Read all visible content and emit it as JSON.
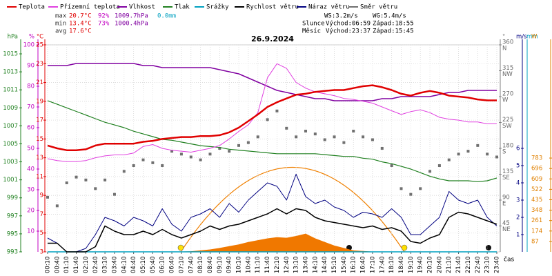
{
  "header": {
    "legend_title": null,
    "stats": [
      {
        "label": "max",
        "items": [
          "20.7°C",
          "92%",
          "1009.7hPa",
          "0.0mm"
        ]
      },
      {
        "label": "min",
        "items": [
          "13.4°C",
          "73%",
          "1000.4hPa"
        ]
      },
      {
        "label": "avg",
        "items": [
          "17.6°C"
        ]
      }
    ],
    "wind": [
      "WS:3.2m/s",
      "WG:5.4m/s"
    ],
    "sun": [
      "Slunce",
      "Východ:06:59",
      "Západ:18:55"
    ],
    "moon": [
      "Měsíc",
      "Východ:23:37",
      "Západ:15:45"
    ]
  },
  "chart_data": {
    "type": "line",
    "title": "26.9.2024",
    "x_label": "čas",
    "grid": true,
    "categories": [
      "00:10",
      "00:40",
      "01:10",
      "01:40",
      "02:10",
      "02:40",
      "03:10",
      "03:40",
      "04:10",
      "04:40",
      "05:10",
      "05:40",
      "06:10",
      "06:40",
      "07:10",
      "07:40",
      "08:10",
      "08:40",
      "09:10",
      "09:40",
      "10:10",
      "10:40",
      "11:10",
      "11:40",
      "12:10",
      "12:40",
      "13:10",
      "13:40",
      "14:10",
      "14:40",
      "15:10",
      "15:40",
      "16:10",
      "16:40",
      "17:10",
      "17:40",
      "18:10",
      "18:40",
      "19:10",
      "19:40",
      "20:10",
      "20:40",
      "21:10",
      "21:40",
      "22:10",
      "22:40",
      "23:10",
      "23:40"
    ],
    "axes": [
      {
        "label": "hPa",
        "side": "left",
        "color": "#208020",
        "lim": [
          993,
          1016
        ],
        "ticks": [
          993,
          995,
          997,
          999,
          1001,
          1003,
          1005,
          1007,
          1009,
          1011,
          1013,
          1015
        ]
      },
      {
        "label": "%",
        "side": "left",
        "color": "#c000c0",
        "lim": [
          0,
          100
        ],
        "ticks": [
          10,
          20,
          30,
          40,
          50,
          60,
          70,
          80,
          90,
          100
        ]
      },
      {
        "label": "°C",
        "side": "left",
        "color": "#e00000",
        "lim": [
          3,
          25
        ],
        "ticks": [
          3,
          5,
          7,
          9,
          11,
          13,
          15,
          17,
          19,
          21,
          23,
          25
        ]
      },
      {
        "label": "°",
        "side": "right",
        "color": "#808080",
        "lim": [
          0,
          360
        ],
        "ticks": [
          {
            "value": 45,
            "label": "45",
            "compass": "NE"
          },
          {
            "value": 90,
            "label": "90",
            "compass": "E"
          },
          {
            "value": 135,
            "label": "135",
            "compass": "SE"
          },
          {
            "value": 180,
            "label": "180",
            "compass": "S"
          },
          {
            "value": 225,
            "label": "225",
            "compass": "SW"
          },
          {
            "value": 270,
            "label": "270",
            "compass": "W"
          },
          {
            "value": 315,
            "label": "315",
            "compass": "NW"
          },
          {
            "value": 360,
            "label": "360",
            "compass": "N"
          }
        ]
      },
      {
        "label": "m/s",
        "side": "right",
        "color": "#000080",
        "lim": [
          0,
          12
        ],
        "ticks": [
          1,
          2,
          3,
          4,
          5,
          6
        ]
      },
      {
        "label": "mm",
        "side": "right",
        "color": "#00a0c0",
        "lim": [
          0,
          1
        ],
        "ticks": []
      },
      {
        "label": "W",
        "side": "right",
        "color": "#e08000",
        "lim": [
          0,
          1728
        ],
        "ticks": [
          87,
          174,
          261,
          348,
          435,
          522,
          609,
          696,
          783
        ]
      }
    ],
    "series": [
      {
        "name": "Teplota",
        "color": "#e00000",
        "axis": 2,
        "style": "line",
        "width": 2.5,
        "values": [
          14.3,
          14.0,
          13.8,
          13.8,
          13.9,
          14.3,
          14.5,
          14.5,
          14.5,
          14.5,
          14.7,
          14.8,
          15.0,
          15.1,
          15.2,
          15.2,
          15.3,
          15.3,
          15.4,
          15.7,
          16.2,
          16.9,
          17.6,
          18.4,
          18.9,
          19.3,
          19.7,
          19.8,
          20.0,
          20.1,
          20.2,
          20.2,
          20.4,
          20.6,
          20.7,
          20.5,
          20.2,
          19.8,
          19.6,
          19.9,
          20.1,
          19.9,
          19.6,
          19.5,
          19.4,
          19.2,
          19.1,
          19.1
        ]
      },
      {
        "name": "Přízemní teplota",
        "color": "#e040e0",
        "axis": 2,
        "style": "line",
        "width": 1,
        "values": [
          12.9,
          12.7,
          12.6,
          12.6,
          12.7,
          13.0,
          13.2,
          13.3,
          13.3,
          13.5,
          14.2,
          14.4,
          14.0,
          13.8,
          13.7,
          13.6,
          13.8,
          14.0,
          14.3,
          15.0,
          15.8,
          16.5,
          17.8,
          21.5,
          23.0,
          22.5,
          21.0,
          20.4,
          20.0,
          19.8,
          19.6,
          19.3,
          19.2,
          19.0,
          18.8,
          18.4,
          18.0,
          17.6,
          17.9,
          18.1,
          17.8,
          17.3,
          17.1,
          17.0,
          16.8,
          16.8,
          16.6,
          16.6
        ]
      },
      {
        "name": "Vlhkost",
        "color": "#8000a0",
        "axis": 1,
        "style": "line",
        "width": 1.5,
        "values": [
          90,
          90,
          90,
          91,
          91,
          91,
          91,
          91,
          91,
          91,
          90,
          90,
          89,
          89,
          89,
          89,
          89,
          89,
          88,
          87,
          86,
          84,
          82,
          80,
          78,
          77,
          76,
          75,
          74,
          74,
          73,
          73,
          73,
          73,
          73,
          74,
          74,
          75,
          75,
          75,
          75,
          76,
          77,
          77,
          78,
          78,
          78,
          78
        ]
      },
      {
        "name": "Tlak",
        "color": "#208020",
        "axis": 0,
        "style": "line",
        "width": 1.2,
        "values": [
          1009.8,
          1009.4,
          1009.0,
          1008.6,
          1008.2,
          1007.8,
          1007.4,
          1007.1,
          1006.8,
          1006.4,
          1006.1,
          1005.8,
          1005.5,
          1005.4,
          1005.2,
          1005.0,
          1004.8,
          1004.7,
          1004.6,
          1004.4,
          1004.3,
          1004.2,
          1004.1,
          1004.0,
          1003.9,
          1003.9,
          1003.9,
          1003.9,
          1003.9,
          1003.8,
          1003.7,
          1003.6,
          1003.6,
          1003.4,
          1003.3,
          1003.0,
          1002.8,
          1002.5,
          1002.2,
          1001.8,
          1001.4,
          1001.1,
          1000.9,
          1000.9,
          1000.9,
          1000.8,
          1000.9,
          1001.2
        ]
      },
      {
        "name": "Srážky",
        "color": "#00a0c0",
        "axis": 5,
        "style": "line",
        "width": 1.5,
        "values": [
          0,
          0,
          0,
          0,
          0,
          0,
          0,
          0,
          0,
          0,
          0,
          0,
          0,
          0,
          0,
          0,
          0,
          0,
          0,
          0,
          0,
          0,
          0,
          0,
          0,
          0,
          0,
          0,
          0,
          0,
          0,
          0,
          0,
          0,
          0,
          0,
          0,
          0,
          0,
          0,
          0,
          0,
          0,
          0,
          0,
          0,
          0,
          0
        ]
      },
      {
        "name": "Rychlost větru",
        "color": "#000000",
        "axis": 4,
        "style": "line",
        "width": 1.5,
        "values": [
          0.5,
          0.5,
          0,
          0,
          0,
          0.3,
          1.5,
          1.2,
          1.0,
          1.0,
          1.2,
          1.0,
          1.3,
          1.0,
          0.8,
          1.0,
          1.2,
          1.5,
          1.3,
          1.5,
          1.6,
          1.8,
          2.0,
          2.2,
          2.5,
          2.2,
          2.5,
          2.4,
          2.0,
          1.8,
          1.7,
          1.6,
          1.5,
          1.4,
          1.5,
          1.3,
          1.4,
          1.2,
          0.6,
          0.5,
          0.8,
          1.0,
          2.0,
          2.3,
          2.2,
          2.0,
          1.8,
          1.6
        ]
      },
      {
        "name": "Náraz větru",
        "color": "#000080",
        "axis": 4,
        "style": "line",
        "width": 1,
        "values": [
          0.8,
          0.5,
          0,
          0,
          0.2,
          1.0,
          2.0,
          1.8,
          1.5,
          2.0,
          1.8,
          1.5,
          2.5,
          1.6,
          1.2,
          2.0,
          2.2,
          2.5,
          2.0,
          2.8,
          2.3,
          3.0,
          3.5,
          4.0,
          3.8,
          3.0,
          4.5,
          3.2,
          2.8,
          3.0,
          2.6,
          2.4,
          2.0,
          2.3,
          2.2,
          2.0,
          2.5,
          2.0,
          1.0,
          1.0,
          1.5,
          2.0,
          3.5,
          3.0,
          2.8,
          3.0,
          2.0,
          1.5
        ]
      },
      {
        "name": "Směr větru",
        "color": "#707070",
        "axis": 3,
        "style": "points",
        "values": [
          95,
          80,
          120,
          130,
          125,
          110,
          125,
          100,
          140,
          150,
          160,
          155,
          150,
          175,
          170,
          165,
          160,
          170,
          180,
          175,
          185,
          190,
          200,
          230,
          245,
          215,
          200,
          210,
          205,
          195,
          200,
          190,
          210,
          200,
          195,
          180,
          150,
          110,
          100,
          110,
          140,
          150,
          160,
          170,
          175,
          185,
          170,
          165
        ]
      },
      {
        "name": null,
        "color": "#f07800",
        "axis": 6,
        "style": "area",
        "values": [
          0,
          0,
          0,
          0,
          0,
          0,
          0,
          0,
          0,
          0,
          0,
          0,
          0,
          0,
          0,
          3,
          10,
          18,
          30,
          45,
          60,
          80,
          95,
          110,
          120,
          115,
          130,
          150,
          110,
          80,
          50,
          30,
          10,
          5,
          0,
          0,
          0,
          0,
          0,
          0,
          0,
          0,
          0,
          0,
          0,
          0,
          0,
          0
        ]
      }
    ]
  }
}
